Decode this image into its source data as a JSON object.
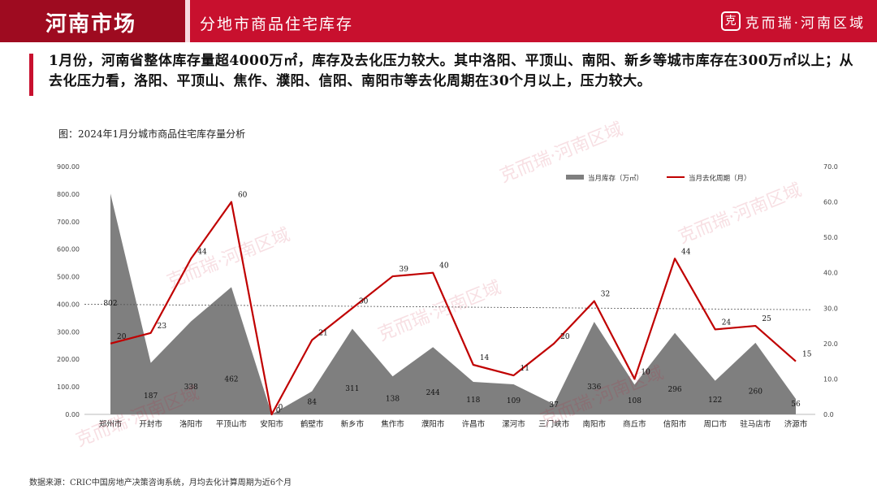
{
  "header": {
    "brand_title": "河南市场",
    "section_title": "分地市商品住宅库存",
    "logo_mark": "克",
    "logo_text": "克而瑞·河南区域"
  },
  "summary": "1月份，河南省整体库存量超4000万㎡，库存及去化压力较大。其中洛阳、平顶山、南阳、新乡等城市库存在300万㎡以上；从去化压力看，洛阳、平顶山、焦作、濮阳、信阳、南阳市等去化周期在30个月以上，压力较大。",
  "figure_caption": "图：2024年1月分城市商品住宅库存量分析",
  "source": "数据来源：CRIC中国房地产决策咨询系统，月均去化计算周期为近6个月",
  "watermark": "克而瑞·河南区域",
  "colors": {
    "brand": "#c8102e",
    "area": "#7f7f7f",
    "line": "#c00000"
  },
  "chart_data": {
    "type": "area+line",
    "categories": [
      "郑州市",
      "开封市",
      "洛阳市",
      "平顶山市",
      "安阳市",
      "鹤壁市",
      "新乡市",
      "焦作市",
      "濮阳市",
      "许昌市",
      "漯河市",
      "三门峡市",
      "南阳市",
      "商丘市",
      "信阳市",
      "周口市",
      "驻马店市",
      "济源市"
    ],
    "series": [
      {
        "name": "当月库存（万㎡）",
        "type": "area",
        "axis": "left",
        "values": [
          802,
          187,
          338,
          462,
          0,
          84,
          311,
          138,
          244,
          118,
          109,
          37,
          336,
          108,
          296,
          122,
          260,
          56
        ]
      },
      {
        "name": "当月去化周期（月）",
        "type": "line",
        "axis": "right",
        "values": [
          20,
          23,
          44,
          60,
          0,
          21,
          30,
          39,
          40,
          14,
          11,
          20,
          32,
          10,
          44,
          24,
          25,
          15
        ]
      }
    ],
    "left_axis": {
      "ylim": [
        0,
        900
      ],
      "ticks": [
        "0.00",
        "100.00",
        "200.00",
        "300.00",
        "400.00",
        "500.00",
        "600.00",
        "700.00",
        "800.00",
        "900.00"
      ]
    },
    "right_axis": {
      "ylim": [
        0,
        70
      ],
      "ticks": [
        "0.0",
        "10.0",
        "20.0",
        "30.0",
        "40.0",
        "50.0",
        "60.0",
        "70.0"
      ]
    },
    "reference_line": {
      "axis": "left",
      "from": 400,
      "to": 380,
      "style": "dotted"
    },
    "legend_position": "top-right",
    "grid": false
  }
}
